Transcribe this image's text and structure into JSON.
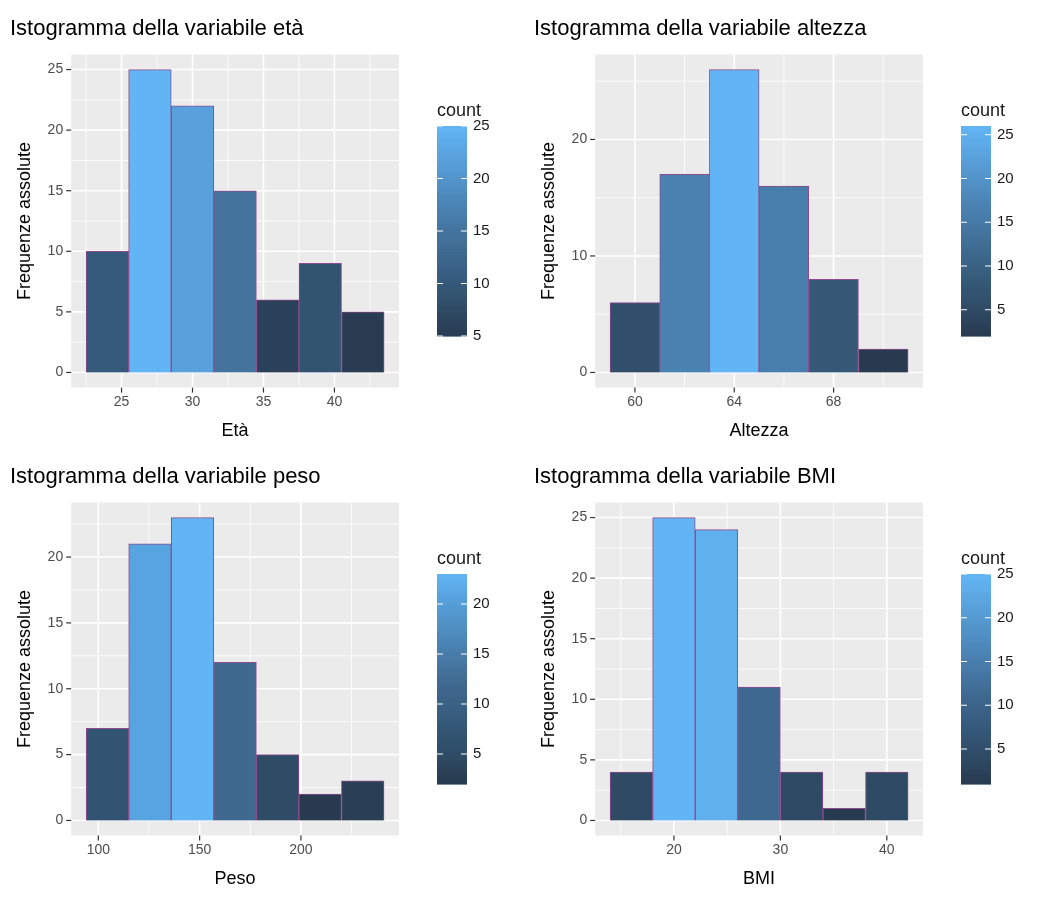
{
  "chart_data": [
    {
      "type": "histogram",
      "title": "Istogramma della variabile età",
      "xlabel": "Età",
      "ylabel": "Frequenze assolute",
      "clabel": "count",
      "bins": [
        22.5,
        25.5,
        28.5,
        31.5,
        34.5,
        37.5,
        40.5,
        43.5
      ],
      "values": [
        10,
        25,
        22,
        15,
        6,
        9,
        5
      ],
      "colors": [
        "#34597A",
        "#62B5F5",
        "#58A1DC",
        "#44749E",
        "#2B4159",
        "#335470",
        "#293C52"
      ],
      "xlim": [
        21.45,
        44.55
      ],
      "xticks": [
        25,
        30,
        35,
        40
      ],
      "ylim": [
        -1.25,
        26.25
      ],
      "yticks": [
        0,
        5,
        10,
        15,
        20,
        25
      ],
      "clim": [
        5,
        25
      ],
      "cticks": [
        5,
        10,
        15,
        20,
        25
      ],
      "grid": true
    },
    {
      "type": "histogram",
      "title": "Istogramma della variabile altezza",
      "xlabel": "Altezza",
      "ylabel": "Frequenze assolute",
      "clabel": "count",
      "bins": [
        59,
        61,
        63,
        65,
        67,
        69,
        71
      ],
      "values": [
        6,
        17,
        26,
        16,
        8,
        2
      ],
      "colors": [
        "#314F6B",
        "#4A82B2",
        "#62B5F5",
        "#487EAC",
        "#345875",
        "#283A4F"
      ],
      "xlim": [
        58.4,
        71.6
      ],
      "xticks": [
        60,
        64,
        68
      ],
      "ylim": [
        -1.3,
        27.3
      ],
      "yticks": [
        0,
        10,
        20
      ],
      "clim": [
        2,
        26
      ],
      "cticks": [
        5,
        10,
        15,
        20,
        25
      ],
      "grid": true
    },
    {
      "type": "histogram",
      "title": "Istogramma della variabile peso",
      "xlabel": "Peso",
      "ylabel": "Frequenze assolute",
      "clabel": "count",
      "bins": [
        94,
        115,
        136,
        157,
        178,
        199,
        220,
        241
      ],
      "values": [
        7,
        21,
        23,
        12,
        5,
        2,
        3
      ],
      "colors": [
        "#325472",
        "#58A4E0",
        "#62B5F5",
        "#40698F",
        "#2F4C66",
        "#283A4F",
        "#2A3F55"
      ],
      "xlim": [
        86.6,
        248.4
      ],
      "xticks": [
        100,
        150,
        200
      ],
      "ylim": [
        -1.15,
        24.15
      ],
      "yticks": [
        0,
        5,
        10,
        15,
        20
      ],
      "clim": [
        2,
        23
      ],
      "cticks": [
        5,
        10,
        15,
        20
      ],
      "grid": true
    },
    {
      "type": "histogram",
      "title": "Istogramma della variabile BMI",
      "xlabel": "BMI",
      "ylabel": "Frequenze assolute",
      "clabel": "count",
      "bins": [
        14,
        18,
        22,
        26,
        30,
        34,
        38,
        42
      ],
      "values": [
        4,
        25,
        24,
        11,
        4,
        1,
        4
      ],
      "colors": [
        "#2E4A64",
        "#62B5F5",
        "#60B0EE",
        "#3E6890",
        "#2E4A64",
        "#283A4F",
        "#2E4A64"
      ],
      "xlim": [
        12.6,
        43.4
      ],
      "xticks": [
        20,
        30,
        40
      ],
      "ylim": [
        -1.25,
        26.25
      ],
      "yticks": [
        0,
        5,
        10,
        15,
        20,
        25
      ],
      "clim": [
        1,
        25
      ],
      "cticks": [
        5,
        10,
        15,
        20,
        25
      ],
      "grid": true
    }
  ]
}
